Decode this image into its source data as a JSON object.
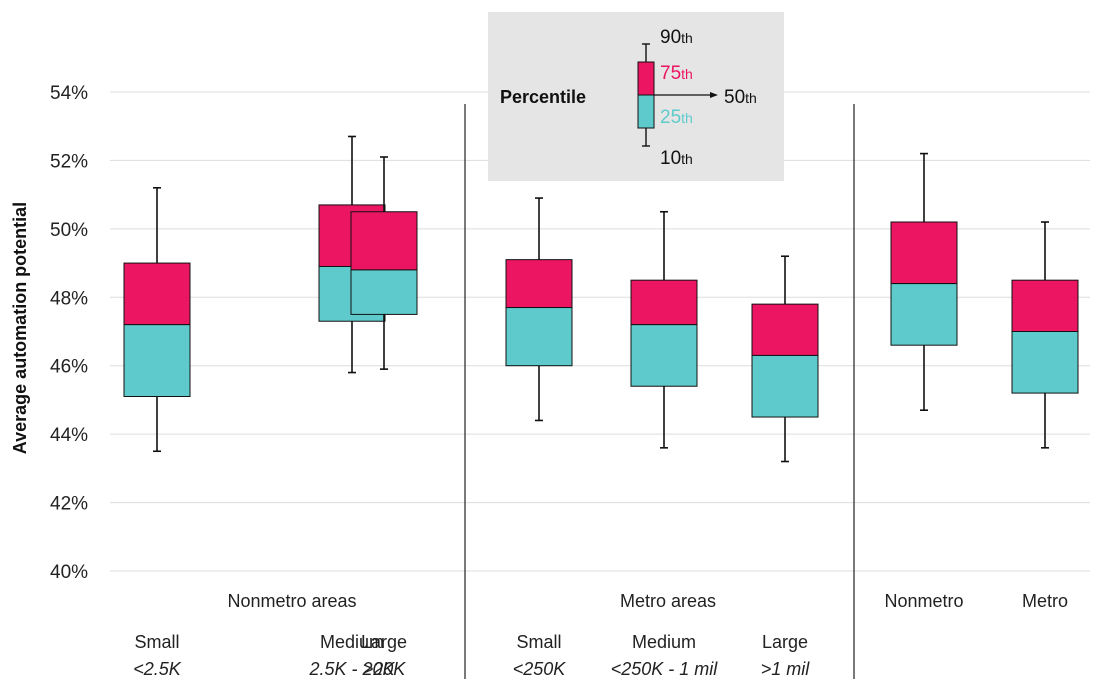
{
  "colors": {
    "upper_box": "#ec1561",
    "lower_box": "#5ecacc",
    "whisker": "#111111",
    "grid": "#dddddd",
    "divider": "#222222",
    "legend_bg": "#e5e5e5"
  },
  "chart_data": {
    "type": "box",
    "ylabel": "Average automation potential",
    "ylim": [
      40,
      54.5
    ],
    "y_ticks": [
      {
        "value": 40,
        "label": "40%"
      },
      {
        "value": 42,
        "label": "42%"
      },
      {
        "value": 44,
        "label": "44%"
      },
      {
        "value": 46,
        "label": "46%"
      },
      {
        "value": 48,
        "label": "48%"
      },
      {
        "value": 50,
        "label": "50%"
      },
      {
        "value": 52,
        "label": "52%"
      },
      {
        "value": 54,
        "label": "54%"
      }
    ],
    "grid": true,
    "groups": [
      {
        "label": "Nonmetro areas",
        "categories": [
          {
            "name": "Small",
            "sub": "<2.5K",
            "p10": 43.5,
            "p25": 45.1,
            "p50": 47.2,
            "p75": 49.0,
            "p90": 51.2
          },
          {
            "name": "Medium",
            "sub": "2.5K - 20K",
            "p10": 45.8,
            "p25": 47.3,
            "p50": 48.9,
            "p75": 50.7,
            "p90": 52.7
          },
          {
            "name": "Large",
            "sub": ">20K",
            "p10": 45.9,
            "p25": 47.5,
            "p50": 48.8,
            "p75": 50.5,
            "p90": 52.1
          }
        ]
      },
      {
        "label": "Metro areas",
        "categories": [
          {
            "name": "Small",
            "sub": "<250K",
            "p10": 44.4,
            "p25": 46.0,
            "p50": 47.7,
            "p75": 49.1,
            "p90": 50.9
          },
          {
            "name": "Medium",
            "sub": "<250K - 1 mil",
            "p10": 43.6,
            "p25": 45.4,
            "p50": 47.2,
            "p75": 48.5,
            "p90": 50.5
          },
          {
            "name": "Large",
            "sub": ">1 mil",
            "p10": 43.2,
            "p25": 44.5,
            "p50": 46.3,
            "p75": 47.8,
            "p90": 49.2
          }
        ]
      },
      {
        "label": "",
        "categories": [
          {
            "name": "Nonmetro",
            "sub": "",
            "p10": 44.7,
            "p25": 46.6,
            "p50": 48.4,
            "p75": 50.2,
            "p90": 52.2
          },
          {
            "name": "Metro",
            "sub": "",
            "p10": 43.6,
            "p25": 45.2,
            "p50": 47.0,
            "p75": 48.5,
            "p90": 50.2
          }
        ]
      }
    ],
    "legend": {
      "title": "Percentile",
      "placement": "top-center",
      "items": [
        {
          "num": "90",
          "suffix": "th",
          "role": "p90"
        },
        {
          "num": "75",
          "suffix": "th",
          "role": "p75"
        },
        {
          "num": "50",
          "suffix": "th",
          "role": "p50"
        },
        {
          "num": "25",
          "suffix": "th",
          "role": "p25"
        },
        {
          "num": "10",
          "suffix": "th",
          "role": "p10"
        }
      ]
    }
  }
}
